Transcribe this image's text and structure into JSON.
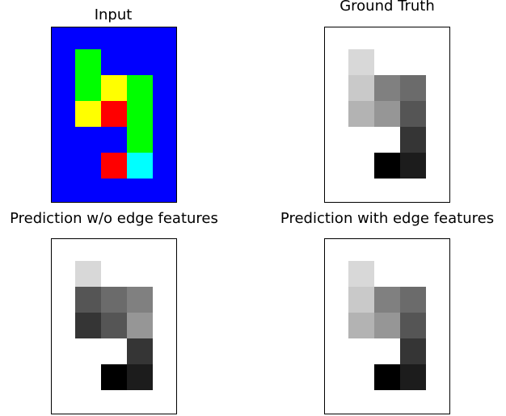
{
  "panels": [
    {
      "title": "Input",
      "background": "#0000ff",
      "cells": [
        {
          "row": 1,
          "col": 1,
          "color": "#00ff00"
        },
        {
          "row": 2,
          "col": 1,
          "color": "#00ff00"
        },
        {
          "row": 2,
          "col": 2,
          "color": "#ffff00"
        },
        {
          "row": 2,
          "col": 3,
          "color": "#00ff00"
        },
        {
          "row": 3,
          "col": 1,
          "color": "#ffff00"
        },
        {
          "row": 3,
          "col": 2,
          "color": "#ff0000"
        },
        {
          "row": 3,
          "col": 3,
          "color": "#00ff00"
        },
        {
          "row": 4,
          "col": 3,
          "color": "#00ff00"
        },
        {
          "row": 5,
          "col": 2,
          "color": "#ff0000"
        },
        {
          "row": 5,
          "col": 3,
          "color": "#00ffff"
        }
      ]
    },
    {
      "title": "Ground Truth",
      "background": "#ffffff",
      "cells": [
        {
          "row": 1,
          "col": 1,
          "color": "#d8d8d8"
        },
        {
          "row": 2,
          "col": 1,
          "color": "#c9c9c9"
        },
        {
          "row": 2,
          "col": 2,
          "color": "#808080"
        },
        {
          "row": 2,
          "col": 3,
          "color": "#6b6b6b"
        },
        {
          "row": 3,
          "col": 1,
          "color": "#b3b3b3"
        },
        {
          "row": 3,
          "col": 2,
          "color": "#969696"
        },
        {
          "row": 3,
          "col": 3,
          "color": "#555555"
        },
        {
          "row": 4,
          "col": 3,
          "color": "#353535"
        },
        {
          "row": 5,
          "col": 2,
          "color": "#000000"
        },
        {
          "row": 5,
          "col": 3,
          "color": "#1c1c1c"
        }
      ]
    },
    {
      "title": "Prediction w/o edge features",
      "background": "#ffffff",
      "cells": [
        {
          "row": 1,
          "col": 1,
          "color": "#d8d8d8"
        },
        {
          "row": 2,
          "col": 1,
          "color": "#555555"
        },
        {
          "row": 2,
          "col": 2,
          "color": "#6b6b6b"
        },
        {
          "row": 2,
          "col": 3,
          "color": "#808080"
        },
        {
          "row": 3,
          "col": 1,
          "color": "#353535"
        },
        {
          "row": 3,
          "col": 2,
          "color": "#555555"
        },
        {
          "row": 3,
          "col": 3,
          "color": "#969696"
        },
        {
          "row": 4,
          "col": 3,
          "color": "#353535"
        },
        {
          "row": 5,
          "col": 2,
          "color": "#000000"
        },
        {
          "row": 5,
          "col": 3,
          "color": "#1c1c1c"
        }
      ]
    },
    {
      "title": "Prediction with edge features",
      "background": "#ffffff",
      "cells": [
        {
          "row": 1,
          "col": 1,
          "color": "#d8d8d8"
        },
        {
          "row": 2,
          "col": 1,
          "color": "#c9c9c9"
        },
        {
          "row": 2,
          "col": 2,
          "color": "#808080"
        },
        {
          "row": 2,
          "col": 3,
          "color": "#6b6b6b"
        },
        {
          "row": 3,
          "col": 1,
          "color": "#b3b3b3"
        },
        {
          "row": 3,
          "col": 2,
          "color": "#969696"
        },
        {
          "row": 3,
          "col": 3,
          "color": "#555555"
        },
        {
          "row": 4,
          "col": 3,
          "color": "#353535"
        },
        {
          "row": 5,
          "col": 2,
          "color": "#000000"
        },
        {
          "row": 5,
          "col": 3,
          "color": "#1c1c1c"
        }
      ]
    }
  ]
}
